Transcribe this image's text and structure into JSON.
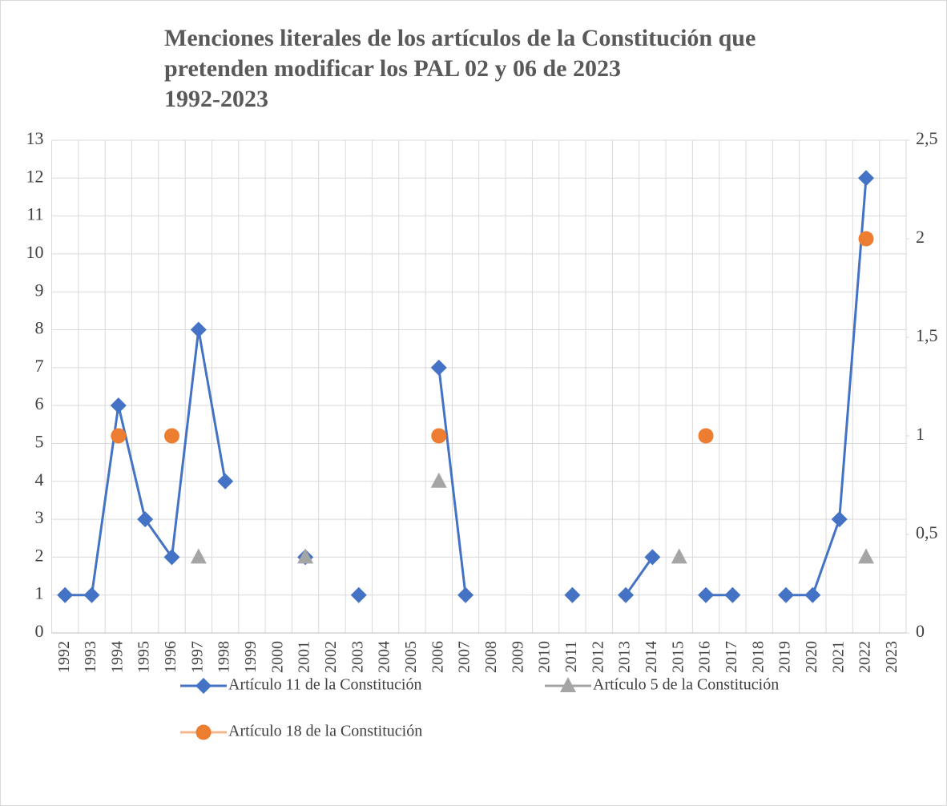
{
  "chart_data": {
    "type": "line",
    "title": [
      "Menciones literales de los artículos de la Constitución que",
      "pretenden modificar los PAL 02 y 06 de 2023",
      "1992-2023"
    ],
    "categories": [
      "1992",
      "1993",
      "1994",
      "1995",
      "1996",
      "1997",
      "1998",
      "1999",
      "2000",
      "2001",
      "2002",
      "2003",
      "2004",
      "2005",
      "2006",
      "2007",
      "2008",
      "2009",
      "2010",
      "2011",
      "2012",
      "2013",
      "2014",
      "2015",
      "2016",
      "2017",
      "2018",
      "2019",
      "2020",
      "2021",
      "2022",
      "2023"
    ],
    "series": [
      {
        "name": "Artículo 11 de la Constitución",
        "color": "#4472c4",
        "marker": "diamond",
        "values": [
          1,
          1,
          6,
          3,
          2,
          8,
          4,
          null,
          null,
          2,
          null,
          1,
          null,
          null,
          7,
          1,
          null,
          null,
          null,
          1,
          null,
          1,
          2,
          null,
          1,
          1,
          null,
          1,
          1,
          3,
          12,
          null
        ]
      },
      {
        "name": "Artículo 5 de la Constitución",
        "color": "#a5a5a5",
        "marker": "triangle",
        "values": [
          null,
          null,
          null,
          null,
          null,
          2,
          null,
          null,
          null,
          2,
          null,
          null,
          null,
          null,
          4,
          null,
          null,
          null,
          null,
          null,
          null,
          null,
          null,
          2,
          null,
          null,
          null,
          null,
          null,
          null,
          2,
          null
        ]
      },
      {
        "name": "Artículo 18 de la Constitución",
        "color": "#ed7d31",
        "marker": "circle",
        "axis": "y2",
        "values": [
          null,
          null,
          1,
          null,
          1,
          null,
          null,
          null,
          null,
          null,
          null,
          null,
          null,
          null,
          1,
          null,
          null,
          null,
          null,
          null,
          null,
          null,
          null,
          null,
          1,
          null,
          null,
          null,
          null,
          null,
          2,
          null
        ]
      }
    ],
    "ylim": [
      0,
      13
    ],
    "yticks": [
      0,
      1,
      2,
      3,
      4,
      5,
      6,
      7,
      8,
      9,
      10,
      11,
      12,
      13
    ],
    "y2lim": [
      0,
      2.5
    ],
    "y2ticks": [
      0,
      {
        "value": 0.5,
        "label": "0,5"
      },
      1,
      {
        "value": 1.5,
        "label": "1,5"
      },
      2,
      {
        "value": 2.5,
        "label": "2,5"
      }
    ],
    "grid": true,
    "legend": "bottom"
  }
}
